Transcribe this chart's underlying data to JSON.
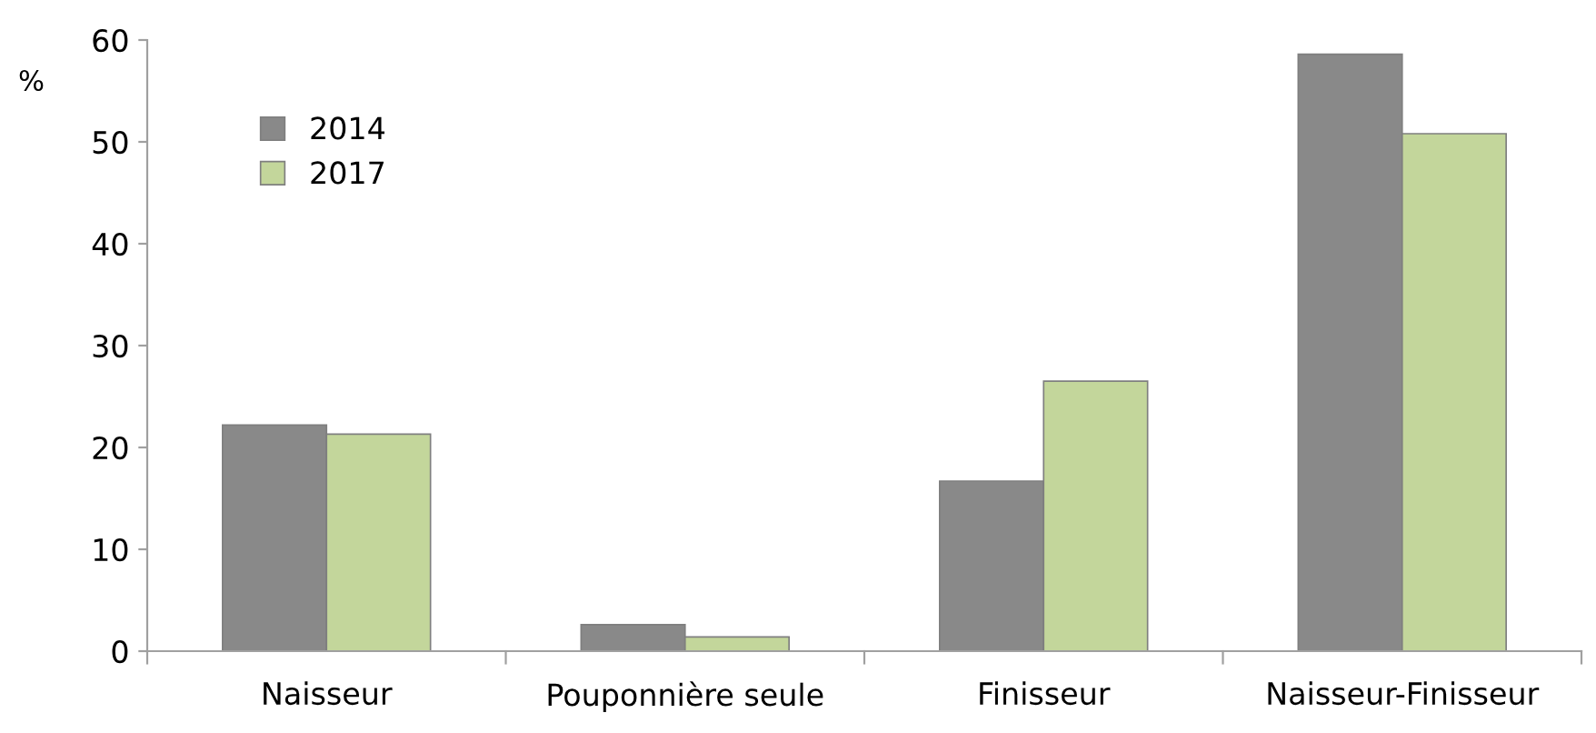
{
  "chart_data": {
    "type": "bar",
    "ylabel": "%",
    "categories": [
      "Naisseur",
      "Pouponnière seule",
      "Finisseur",
      "Naisseur-Finisseur"
    ],
    "series": [
      {
        "name": "2014",
        "color": "#898989",
        "values": [
          22.2,
          2.6,
          16.7,
          58.6
        ]
      },
      {
        "name": "2017",
        "color": "#c3d69b",
        "values": [
          21.3,
          1.4,
          26.5,
          50.8
        ]
      }
    ],
    "ylim": [
      0,
      60
    ],
    "yticks": [
      0,
      10,
      20,
      30,
      40,
      50,
      60
    ],
    "grid": false,
    "legend": "top left"
  }
}
